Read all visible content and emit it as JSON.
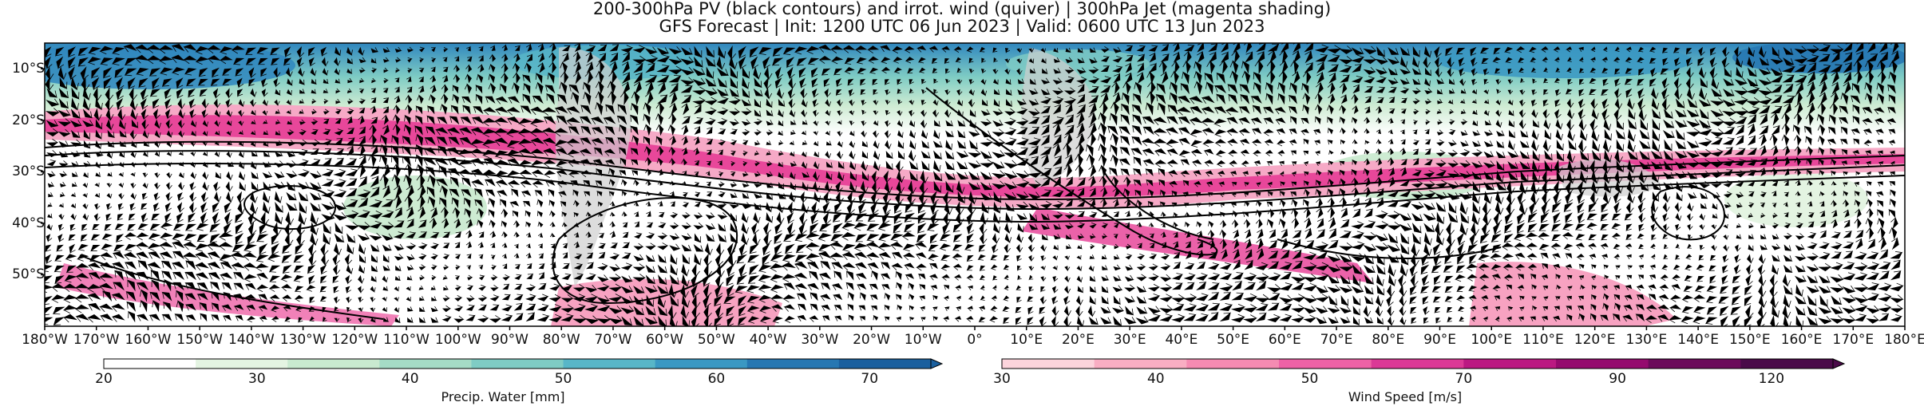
{
  "title_line1": "200-300hPa PV (black contours) and irrot. wind (quiver) | 300hPa Jet (magenta shading)",
  "title_line2": "GFS Forecast | Init: 1200 UTC 06 Jun 2023 | Valid: 0600 UTC 13 Jun 2023",
  "lat_labels": [
    "10°S",
    "20°S",
    "30°S",
    "40°S",
    "50°S"
  ],
  "lon_labels": [
    "180°W",
    "170°W",
    "160°W",
    "150°W",
    "140°W",
    "130°W",
    "120°W",
    "110°W",
    "100°W",
    "90°W",
    "80°W",
    "70°W",
    "60°W",
    "50°W",
    "40°W",
    "30°W",
    "20°W",
    "10°W",
    "0°",
    "10°E",
    "20°E",
    "30°E",
    "40°E",
    "50°E",
    "60°E",
    "70°E",
    "80°E",
    "90°E",
    "100°E",
    "110°E",
    "120°E",
    "130°E",
    "140°E",
    "150°E",
    "160°E",
    "170°E",
    "180°E"
  ],
  "colorbar_pw": {
    "label": "Precip. Water [mm]",
    "ticks": [
      "20",
      "30",
      "40",
      "50",
      "60",
      "70"
    ],
    "colors": [
      "#ffffff",
      "#e4f4e2",
      "#c9ead0",
      "#a5dcc6",
      "#7fccc4",
      "#58b6c8",
      "#3a98c3",
      "#2677b2",
      "#1a5f9e"
    ]
  },
  "colorbar_jet": {
    "label": "Wind Speed [m/s]",
    "ticks": [
      "30",
      "40",
      "50",
      "70",
      "90",
      "120"
    ],
    "colors": [
      "#fcd4dc",
      "#f9aec3",
      "#f58bb2",
      "#ee62a6",
      "#db3996",
      "#bb1982",
      "#950a6e",
      "#6b0a5a",
      "#4a0a49"
    ]
  },
  "map_colors": {
    "land": "#cfcfcf",
    "jet": "#e8479a",
    "jet_light": "#f6a9c6",
    "pw_green": "#cdebd2",
    "pw_blue": "#2f86be",
    "contour": "#000000"
  }
}
